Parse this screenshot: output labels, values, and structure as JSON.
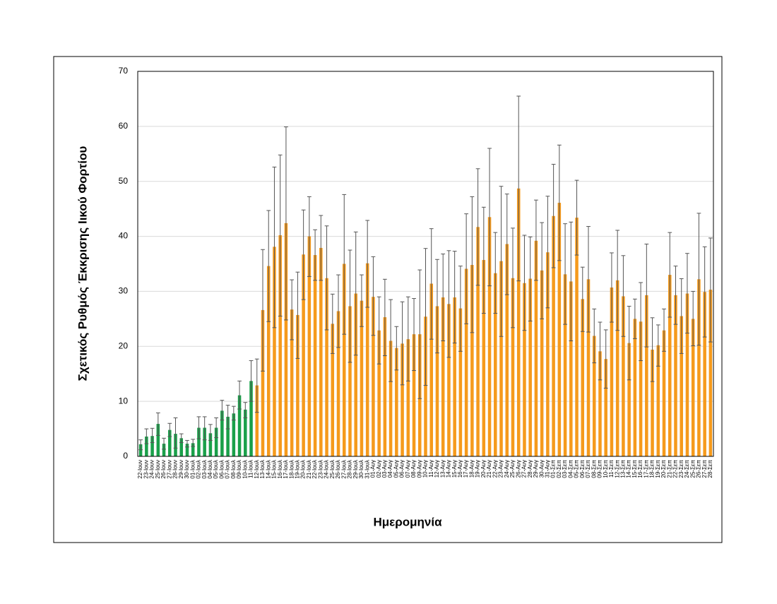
{
  "chart_data": {
    "type": "bar",
    "x_label": "Ημερομηνία",
    "y_label": "Σχετικός Ρυθμός Έκκρισης Ιικού Φορτίου",
    "categories": [
      "22-Ιουν",
      "23-Ιουν",
      "24-Ιουν",
      "25-Ιουν",
      "26-Ιουν",
      "27-Ιουν",
      "28-Ιουν",
      "29-Ιουν",
      "30-Ιουν",
      "01-Ιουλ",
      "02-Ιουλ",
      "03-Ιουλ",
      "04-Ιουλ",
      "05-Ιουλ",
      "06-Ιουλ",
      "07-Ιουλ",
      "08-Ιουλ",
      "09-Ιουλ",
      "10-Ιουλ",
      "11-Ιουλ",
      "12-Ιουλ",
      "13-Ιουλ",
      "14-Ιουλ",
      "15-Ιουλ",
      "16-Ιουλ",
      "17-Ιουλ",
      "18-Ιουλ",
      "19-Ιουλ",
      "20-Ιουλ",
      "21-Ιουλ",
      "22-Ιουλ",
      "23-Ιουλ",
      "24-Ιουλ",
      "25-Ιουλ",
      "26-Ιουλ",
      "27-Ιουλ",
      "28-Ιουλ",
      "29-Ιουλ",
      "30-Ιουλ",
      "31-Ιουλ",
      "01-Αυγ",
      "02-Αυγ",
      "03-Αυγ",
      "04-Αυγ",
      "05-Αυγ",
      "06-Αυγ",
      "07-Αυγ",
      "08-Αυγ",
      "09-Αυγ",
      "10-Αυγ",
      "11-Αυγ",
      "12-Αυγ",
      "13-Αυγ",
      "14-Αυγ",
      "15-Αυγ",
      "16-Αυγ",
      "17-Αυγ",
      "18-Αυγ",
      "19-Αυγ",
      "20-Αυγ",
      "21-Αυγ",
      "22-Αυγ",
      "23-Αυγ",
      "24-Αυγ",
      "25-Αυγ",
      "26-Αυγ",
      "27-Αυγ",
      "28-Αυγ",
      "29-Αυγ",
      "30-Αυγ",
      "31-Αυγ",
      "01-Σεπ",
      "02-Σεπ",
      "03-Σεπ",
      "04-Σεπ",
      "05-Σεπ",
      "06-Σεπ",
      "07-Σεπ",
      "08-Σεπ",
      "09-Σεπ",
      "10-Σεπ",
      "11-Σεπ",
      "12-Σεπ",
      "13-Σεπ",
      "14-Σεπ",
      "15-Σεπ",
      "16-Σεπ",
      "17-Σεπ",
      "18-Σεπ",
      "19-Σεπ",
      "20-Σεπ",
      "21-Σεπ",
      "22-Σεπ",
      "23-Σεπ",
      "24-Σεπ",
      "25-Σεπ",
      "26-Σεπ",
      "27-Σεπ",
      "28-Σεπ"
    ],
    "values": [
      2.2,
      3.6,
      3.7,
      5.9,
      2.3,
      4.8,
      4.1,
      3.3,
      2.3,
      2.4,
      5.2,
      5.2,
      4.2,
      5.2,
      8.3,
      7.2,
      7.8,
      11.1,
      8.5,
      13.7,
      12.9,
      26.6,
      34.6,
      38.1,
      40.2,
      42.4,
      26.7,
      25.7,
      36.7,
      40.0,
      36.6,
      37.9,
      32.4,
      24.1,
      26.4,
      35.0,
      27.3,
      29.6,
      28.3,
      35.1,
      29.0,
      22.9,
      25.3,
      21.0,
      19.7,
      20.5,
      21.3,
      22.2,
      22.2,
      25.4,
      31.4,
      27.3,
      28.9,
      27.7,
      28.9,
      26.9,
      34.1,
      34.8,
      41.7,
      35.7,
      43.5,
      33.3,
      35.5,
      38.6,
      32.4,
      48.7,
      31.5,
      32.3,
      39.2,
      33.8,
      37.1,
      43.7,
      46.1,
      33.1,
      31.8,
      43.4,
      28.6,
      32.2,
      21.9,
      19.1,
      17.7,
      30.7,
      32.0,
      29.1,
      20.6,
      25.0,
      24.5,
      29.3,
      19.4,
      20.2,
      22.9,
      33.0,
      29.3,
      25.5,
      29.6,
      25.0,
      32.2,
      29.9,
      30.3
    ],
    "lower": [
      1.2,
      2.3,
      2.5,
      3.8,
      1.3,
      3.6,
      1.5,
      2.5,
      1.7,
      1.8,
      3.2,
      3.0,
      2.9,
      3.4,
      6.6,
      5.0,
      6.6,
      8.6,
      7.0,
      10.0,
      8.0,
      15.5,
      24.5,
      23.4,
      25.5,
      24.8,
      21.2,
      17.8,
      28.5,
      32.7,
      32.0,
      32.0,
      23.0,
      18.7,
      19.8,
      22.2,
      17.1,
      18.4,
      23.6,
      27.1,
      22.0,
      16.8,
      18.3,
      13.6,
      15.7,
      13.0,
      13.7,
      15.6,
      10.5,
      12.9,
      21.3,
      18.8,
      21.0,
      18.0,
      20.6,
      19.1,
      24.1,
      22.5,
      31.1,
      26.0,
      31.0,
      26.0,
      21.8,
      29.4,
      23.4,
      31.9,
      22.9,
      24.6,
      32.0,
      25.0,
      27.0,
      34.3,
      35.6,
      24.0,
      21.0,
      36.6,
      22.7,
      22.6,
      17.0,
      13.9,
      12.4,
      24.4,
      22.9,
      21.8,
      13.9,
      21.4,
      17.4,
      19.9,
      13.6,
      16.4,
      19.1,
      25.3,
      24.0,
      18.7,
      22.4,
      20.1,
      20.2,
      21.7,
      20.8
    ],
    "upper": [
      3.0,
      5.0,
      5.1,
      7.9,
      3.3,
      6.0,
      7.0,
      4.1,
      2.9,
      3.1,
      7.2,
      7.2,
      5.8,
      7.0,
      10.2,
      9.3,
      9.1,
      13.7,
      9.8,
      17.4,
      17.7,
      37.6,
      44.7,
      52.6,
      54.8,
      59.9,
      32.1,
      33.5,
      44.8,
      47.2,
      41.2,
      43.8,
      41.9,
      29.5,
      33.0,
      47.6,
      37.5,
      40.8,
      33.0,
      42.9,
      36.3,
      29.0,
      32.2,
      28.5,
      23.6,
      28.1,
      29.0,
      28.7,
      33.9,
      37.8,
      41.4,
      35.8,
      36.8,
      37.4,
      37.3,
      34.6,
      44.1,
      47.2,
      52.3,
      45.3,
      56.0,
      40.7,
      49.1,
      47.7,
      41.5,
      65.5,
      40.2,
      39.9,
      46.6,
      42.5,
      47.3,
      53.1,
      56.6,
      42.3,
      42.6,
      50.2,
      34.4,
      41.8,
      26.8,
      24.4,
      23.0,
      37.0,
      41.1,
      36.5,
      27.3,
      28.6,
      31.6,
      38.6,
      25.2,
      23.9,
      26.8,
      40.7,
      34.6,
      32.3,
      36.9,
      30.0,
      44.2,
      38.1,
      39.7
    ],
    "colors": [
      "#1aa04a",
      "#1aa04a",
      "#1aa04a",
      "#1aa04a",
      "#1aa04a",
      "#1aa04a",
      "#1aa04a",
      "#1aa04a",
      "#1aa04a",
      "#1aa04a",
      "#1aa04a",
      "#1aa04a",
      "#1aa04a",
      "#1aa04a",
      "#1aa04a",
      "#1aa04a",
      "#1aa04a",
      "#1aa04a",
      "#1aa04a",
      "#1aa04a",
      "#f59a1c",
      "#f59a1c",
      "#f59a1c",
      "#f59a1c",
      "#f59a1c",
      "#f59a1c",
      "#f59a1c",
      "#f59a1c",
      "#f59a1c",
      "#f59a1c",
      "#f59a1c",
      "#f59a1c",
      "#f59a1c",
      "#f59a1c",
      "#f59a1c",
      "#f59a1c",
      "#f59a1c",
      "#f59a1c",
      "#f59a1c",
      "#f59a1c",
      "#f59a1c",
      "#f59a1c",
      "#f59a1c",
      "#f59a1c",
      "#f59a1c",
      "#f59a1c",
      "#f59a1c",
      "#f59a1c",
      "#f59a1c",
      "#f59a1c",
      "#f59a1c",
      "#f59a1c",
      "#f59a1c",
      "#f59a1c",
      "#f59a1c",
      "#f59a1c",
      "#f59a1c",
      "#f59a1c",
      "#f59a1c",
      "#f59a1c",
      "#f59a1c",
      "#f59a1c",
      "#f59a1c",
      "#f59a1c",
      "#f59a1c",
      "#f59a1c",
      "#f59a1c",
      "#f59a1c",
      "#f59a1c",
      "#f59a1c",
      "#f59a1c",
      "#f59a1c",
      "#f59a1c",
      "#f59a1c",
      "#f59a1c",
      "#f59a1c",
      "#f59a1c",
      "#f59a1c",
      "#f59a1c",
      "#f59a1c",
      "#f59a1c",
      "#f59a1c",
      "#f59a1c",
      "#f59a1c",
      "#f59a1c",
      "#f59a1c",
      "#f59a1c",
      "#f59a1c",
      "#f59a1c",
      "#f59a1c",
      "#f59a1c",
      "#f59a1c",
      "#f59a1c",
      "#f59a1c",
      "#f59a1c",
      "#f59a1c",
      "#f59a1c",
      "#f59a1c",
      "#f59a1c"
    ],
    "error_color": "#555555",
    "ylim": [
      0,
      70
    ],
    "yticks": [
      0,
      10,
      20,
      30,
      40,
      50,
      60,
      70
    ],
    "grid": true
  }
}
